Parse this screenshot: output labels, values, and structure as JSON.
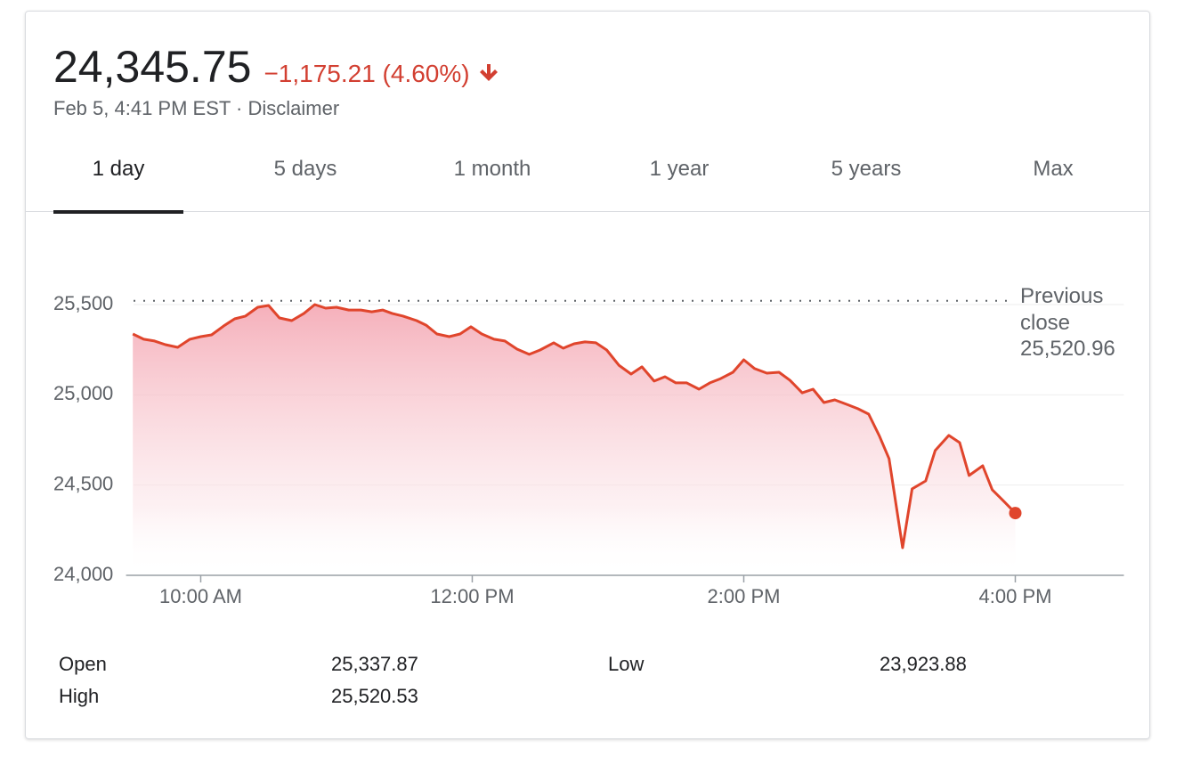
{
  "header": {
    "price": "24,345.75",
    "change": "−1,175.21 (4.60%)",
    "timestamp": "Feb 5, 4:41 PM EST",
    "separator": "·",
    "disclaimer": "Disclaimer"
  },
  "tabs": [
    "1 day",
    "5 days",
    "1 month",
    "1 year",
    "5 years",
    "Max"
  ],
  "selected_tab": 0,
  "chart_data": {
    "type": "line",
    "x": [
      9.5,
      9.58,
      9.66,
      9.74,
      9.83,
      9.92,
      10.0,
      10.08,
      10.17,
      10.25,
      10.33,
      10.42,
      10.5,
      10.58,
      10.67,
      10.76,
      10.84,
      10.92,
      11.0,
      11.09,
      11.18,
      11.26,
      11.34,
      11.41,
      11.49,
      11.59,
      11.66,
      11.74,
      11.83,
      11.91,
      11.99,
      12.07,
      12.16,
      12.24,
      12.33,
      12.42,
      12.5,
      12.6,
      12.67,
      12.75,
      12.83,
      12.91,
      12.99,
      13.08,
      13.17,
      13.25,
      13.34,
      13.42,
      13.5,
      13.58,
      13.67,
      13.75,
      13.83,
      13.92,
      14.0,
      14.08,
      14.17,
      14.26,
      14.34,
      14.43,
      14.51,
      14.59,
      14.67,
      14.76,
      14.84,
      14.92,
      15.0,
      15.07,
      15.17,
      15.24,
      15.34,
      15.41,
      15.51,
      15.59,
      15.66,
      15.76,
      15.83,
      15.91,
      16.0
    ],
    "values": [
      25337,
      25308,
      25298,
      25278,
      25263,
      25308,
      25322,
      25332,
      25382,
      25421,
      25436,
      25485,
      25495,
      25426,
      25411,
      25451,
      25500,
      25480,
      25485,
      25470,
      25470,
      25460,
      25470,
      25451,
      25436,
      25411,
      25386,
      25337,
      25322,
      25337,
      25377,
      25337,
      25308,
      25298,
      25253,
      25224,
      25248,
      25288,
      25258,
      25283,
      25293,
      25288,
      25248,
      25164,
      25115,
      25155,
      25076,
      25100,
      25066,
      25066,
      25031,
      25066,
      25090,
      25125,
      25194,
      25145,
      25120,
      25125,
      25081,
      25011,
      25031,
      24957,
      24972,
      24947,
      24923,
      24893,
      24770,
      24646,
      24153,
      24479,
      24523,
      24691,
      24775,
      24735,
      24553,
      24607,
      24474,
      24414,
      24345
    ],
    "color": "#e0452c",
    "xlim": [
      9.45,
      16.8
    ],
    "ylim": [
      24000,
      25750
    ],
    "xticks": [
      {
        "value": 10,
        "label": "10:00 AM"
      },
      {
        "value": 12,
        "label": "12:00 PM"
      },
      {
        "value": 14,
        "label": "2:00 PM"
      },
      {
        "value": 16,
        "label": "4:00 PM"
      }
    ],
    "yticks": [
      {
        "value": 24000,
        "label": "24,000"
      },
      {
        "value": 24500,
        "label": "24,500"
      },
      {
        "value": 25000,
        "label": "25,000"
      },
      {
        "value": 25500,
        "label": "25,500"
      }
    ],
    "grid": true,
    "reference_line": {
      "label": "Previous close",
      "value": 25520.96,
      "value_label": "25,520.96"
    }
  },
  "stats": [
    {
      "label": "Open",
      "value": "25,337.87"
    },
    {
      "label": "High",
      "value": "25,520.53"
    },
    {
      "label": "Low",
      "value": "23,923.88"
    }
  ]
}
